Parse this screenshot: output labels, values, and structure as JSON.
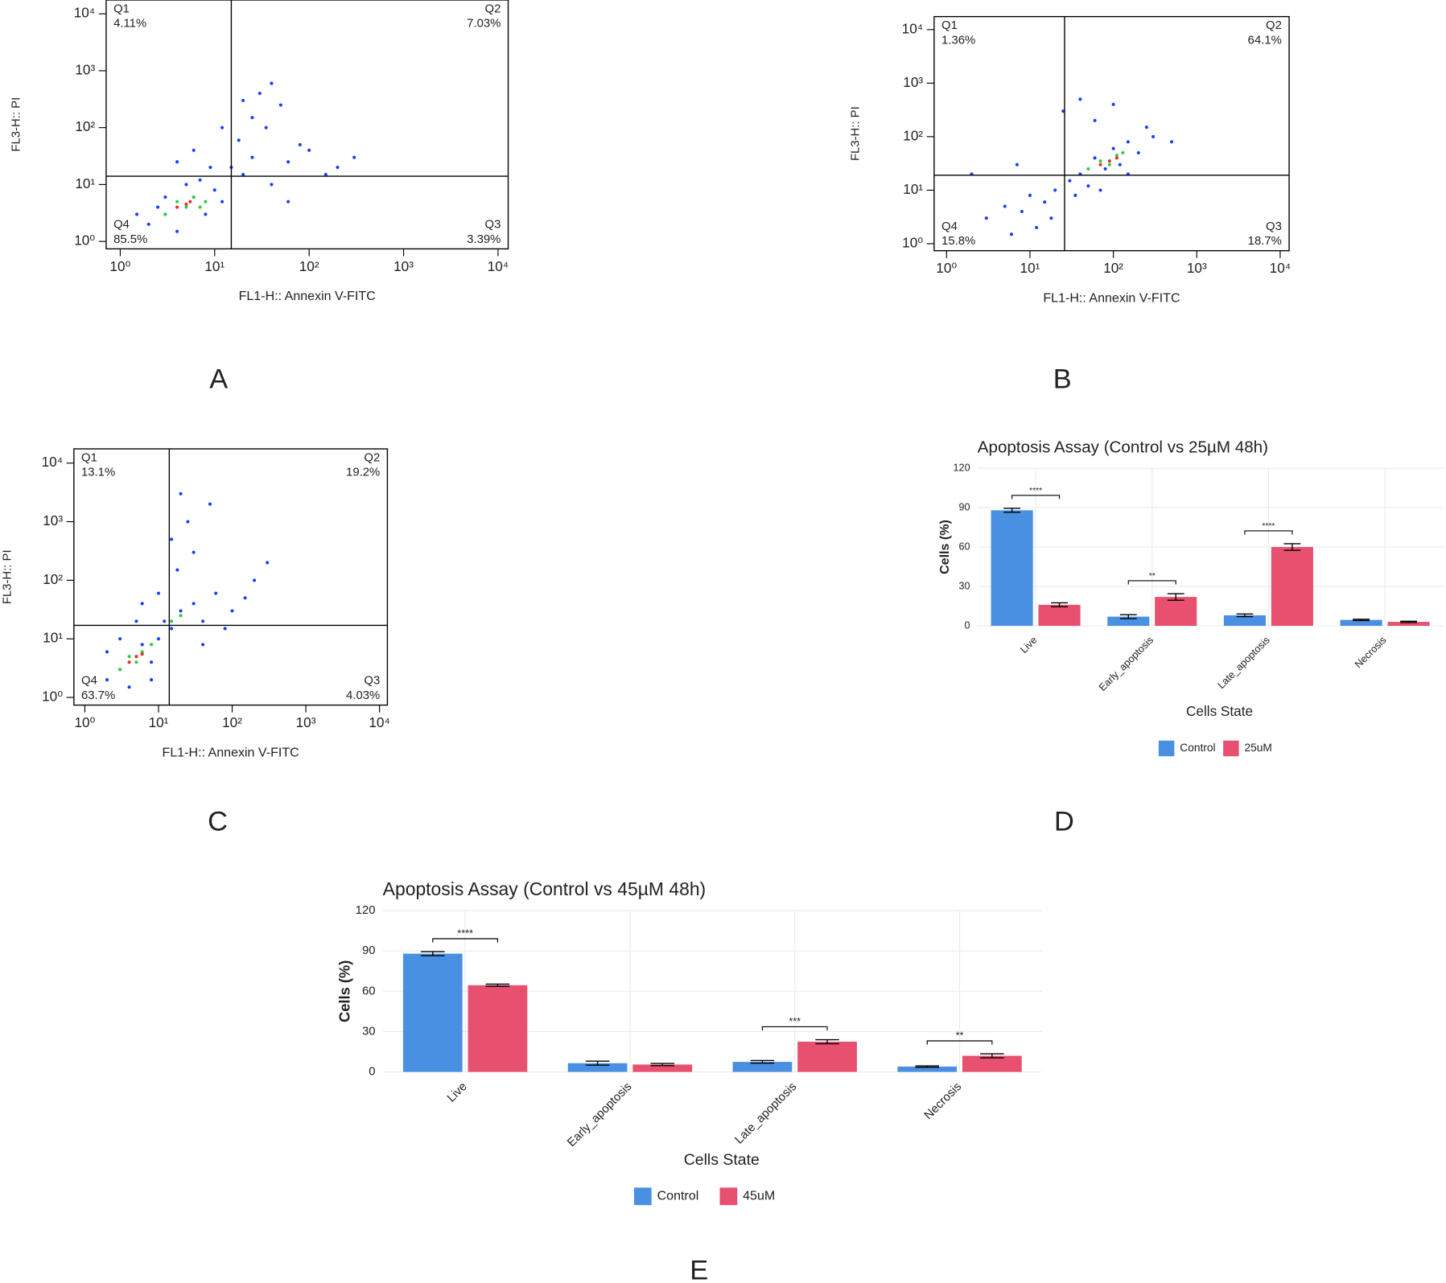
{
  "chart_data": [
    {
      "type": "flow_scatter",
      "panel_label": "A",
      "xlabel": "FL1-H:: Annexin V-FITC",
      "ylabel": "FL3-H:: PI",
      "xscale": "log",
      "yscale": "log",
      "xlim": [
        0.71,
        12800
      ],
      "ylim": [
        0.74,
        17500
      ],
      "xticks": [
        {
          "value": 1,
          "label": "10⁰"
        },
        {
          "value": 10,
          "label": "10¹"
        },
        {
          "value": 100,
          "label": "10²"
        },
        {
          "value": 1000,
          "label": "10³"
        },
        {
          "value": 10000,
          "label": "10⁴"
        }
      ],
      "yticks": [
        {
          "value": 1,
          "label": "10⁰"
        },
        {
          "value": 10,
          "label": "10¹"
        },
        {
          "value": 100,
          "label": "10²"
        },
        {
          "value": 1000,
          "label": "10³"
        },
        {
          "value": 10000,
          "label": "10⁴"
        }
      ],
      "gates": {
        "x": 15,
        "y": 14
      },
      "quadrants": {
        "names": [
          "Q1",
          "Q2",
          "Q3",
          "Q4"
        ],
        "values": [
          4.11,
          7.03,
          3.39,
          85.5
        ],
        "value_labels": [
          "4.11%",
          "7.03%",
          "3.39%",
          "85.5%"
        ]
      },
      "series": [
        {
          "color": "#1a3cff",
          "x": [
            2,
            3,
            4,
            6,
            8,
            10,
            3,
            5,
            7,
            12,
            15,
            20,
            2.5,
            9,
            25,
            40,
            60,
            100,
            150,
            30,
            20,
            40,
            50,
            25,
            35,
            80,
            200,
            12,
            6,
            18,
            1.5,
            4,
            300,
            60
          ],
          "y": [
            2,
            3,
            1.5,
            6,
            3,
            8,
            6,
            10,
            12,
            5,
            20,
            15,
            4,
            20,
            30,
            10,
            25,
            40,
            15,
            400,
            300,
            600,
            250,
            150,
            100,
            50,
            20,
            100,
            40,
            60,
            3,
            25,
            30,
            5
          ]
        },
        {
          "color": "#2ecc40",
          "x": [
            3,
            4,
            5,
            6,
            7,
            8
          ],
          "y": [
            3,
            5,
            4,
            6,
            4,
            5
          ]
        },
        {
          "color": "#e8301c",
          "x": [
            4,
            5,
            5.5
          ],
          "y": [
            4,
            4.5,
            5
          ]
        }
      ]
    },
    {
      "type": "flow_scatter",
      "panel_label": "B",
      "xlabel": "FL1-H:: Annexin V-FITC",
      "ylabel": "FL3-H:: PI",
      "xscale": "log",
      "yscale": "log",
      "xlim": [
        0.71,
        12800
      ],
      "ylim": [
        0.74,
        17500
      ],
      "xticks": [
        {
          "value": 1,
          "label": "10⁰"
        },
        {
          "value": 10,
          "label": "10¹"
        },
        {
          "value": 100,
          "label": "10²"
        },
        {
          "value": 1000,
          "label": "10³"
        },
        {
          "value": 10000,
          "label": "10⁴"
        }
      ],
      "yticks": [
        {
          "value": 1,
          "label": "10⁰"
        },
        {
          "value": 10,
          "label": "10¹"
        },
        {
          "value": 100,
          "label": "10²"
        },
        {
          "value": 1000,
          "label": "10³"
        },
        {
          "value": 10000,
          "label": "10⁴"
        }
      ],
      "gates": {
        "x": 26,
        "y": 19
      },
      "quadrants": {
        "names": [
          "Q1",
          "Q2",
          "Q3",
          "Q4"
        ],
        "values": [
          1.36,
          64.1,
          18.7,
          15.8
        ],
        "value_labels": [
          "1.36%",
          "64.1%",
          "18.7%",
          "15.8%"
        ]
      },
      "series": [
        {
          "color": "#1a3cff",
          "x": [
            3,
            5,
            8,
            10,
            15,
            20,
            30,
            40,
            50,
            60,
            80,
            100,
            120,
            150,
            200,
            300,
            25,
            40,
            60,
            100,
            12,
            6,
            2,
            7,
            18,
            250,
            500,
            35,
            70,
            150
          ],
          "y": [
            3,
            5,
            4,
            8,
            6,
            10,
            15,
            20,
            12,
            40,
            25,
            60,
            30,
            80,
            50,
            100,
            300,
            500,
            200,
            400,
            2,
            1.5,
            20,
            30,
            3,
            150,
            80,
            8,
            10,
            20
          ]
        },
        {
          "color": "#2ecc40",
          "x": [
            50,
            70,
            90,
            110,
            130
          ],
          "y": [
            25,
            35,
            30,
            45,
            50
          ]
        },
        {
          "color": "#e8301c",
          "x": [
            70,
            90,
            110
          ],
          "y": [
            30,
            35,
            40
          ]
        }
      ]
    },
    {
      "type": "flow_scatter",
      "panel_label": "C",
      "xlabel": "FL1-H:: Annexin V-FITC",
      "ylabel": "FL3-H:: PI",
      "xscale": "log",
      "yscale": "log",
      "xlim": [
        0.71,
        12800
      ],
      "ylim": [
        0.74,
        17500
      ],
      "xticks": [
        {
          "value": 1,
          "label": "10⁰"
        },
        {
          "value": 10,
          "label": "10¹"
        },
        {
          "value": 100,
          "label": "10²"
        },
        {
          "value": 1000,
          "label": "10³"
        },
        {
          "value": 10000,
          "label": "10⁴"
        }
      ],
      "yticks": [
        {
          "value": 1,
          "label": "10⁰"
        },
        {
          "value": 10,
          "label": "10¹"
        },
        {
          "value": 100,
          "label": "10²"
        },
        {
          "value": 1000,
          "label": "10³"
        },
        {
          "value": 10000,
          "label": "10⁴"
        }
      ],
      "gates": {
        "x": 14,
        "y": 17
      },
      "quadrants": {
        "names": [
          "Q1",
          "Q2",
          "Q3",
          "Q4"
        ],
        "values": [
          13.1,
          19.2,
          4.03,
          63.7
        ],
        "value_labels": [
          "13.1%",
          "19.2%",
          "4.03%",
          "63.7%"
        ]
      },
      "series": [
        {
          "color": "#1a3cff",
          "x": [
            2,
            3,
            4,
            6,
            8,
            10,
            12,
            15,
            20,
            30,
            40,
            60,
            100,
            200,
            300,
            15,
            25,
            50,
            20,
            30,
            3,
            5,
            8,
            2,
            40,
            80,
            18,
            150,
            10,
            6
          ],
          "y": [
            2,
            3,
            1.5,
            8,
            4,
            10,
            20,
            15,
            30,
            40,
            20,
            60,
            30,
            100,
            200,
            500,
            1000,
            2000,
            3000,
            300,
            10,
            20,
            2,
            6,
            8,
            15,
            150,
            50,
            60,
            40
          ]
        },
        {
          "color": "#2ecc40",
          "x": [
            3,
            4,
            5,
            6,
            8,
            15,
            20
          ],
          "y": [
            3,
            5,
            4,
            6,
            8,
            20,
            25
          ]
        },
        {
          "color": "#e8301c",
          "x": [
            4,
            5,
            6
          ],
          "y": [
            4,
            5,
            5.5
          ]
        }
      ]
    },
    {
      "type": "bar",
      "panel_label": "D",
      "title": "Apoptosis Assay (Control vs 25µM 48h)",
      "xlabel": "Cells State",
      "ylabel": "Cells (%)",
      "categories": [
        "Live",
        "Early_apoptosis",
        "Late_apoptosis",
        "Necrosis"
      ],
      "series": [
        {
          "name": "Control",
          "color": "#4a90e2",
          "values": [
            88,
            7,
            8,
            4.5
          ],
          "errors": [
            1.5,
            1.5,
            1,
            0.5
          ]
        },
        {
          "name": "25uM",
          "color": "#e8506f",
          "values": [
            16,
            22,
            60,
            3
          ],
          "errors": [
            1.5,
            2.5,
            2.5,
            0.5
          ]
        }
      ],
      "ylim": [
        0,
        120
      ],
      "yticks": [
        0,
        30,
        60,
        90,
        120
      ],
      "grid": true,
      "legend": "bottom",
      "annotations": [
        {
          "category": "Live",
          "text": "****"
        },
        {
          "category": "Early_apoptosis",
          "text": "**"
        },
        {
          "category": "Late_apoptosis",
          "text": "****"
        }
      ]
    },
    {
      "type": "bar",
      "panel_label": "E",
      "title": "Apoptosis Assay (Control vs 45µM 48h)",
      "xlabel": "Cells State",
      "ylabel": "Cells (%)",
      "categories": [
        "Live",
        "Early_apoptosis",
        "Late_apoptosis",
        "Necrosis"
      ],
      "series": [
        {
          "name": "Control",
          "color": "#4a90e2",
          "values": [
            88,
            6.5,
            7.5,
            4
          ],
          "errors": [
            1.5,
            1.5,
            1,
            0.5
          ]
        },
        {
          "name": "45uM",
          "color": "#e8506f",
          "values": [
            64.5,
            5.5,
            22.5,
            12
          ],
          "errors": [
            0.8,
            0.8,
            1.5,
            1.5
          ]
        }
      ],
      "ylim": [
        0,
        120
      ],
      "yticks": [
        0,
        30,
        60,
        90,
        120
      ],
      "grid": true,
      "legend": "bottom",
      "annotations": [
        {
          "category": "Live",
          "text": "****"
        },
        {
          "category": "Late_apoptosis",
          "text": "***"
        },
        {
          "category": "Necrosis",
          "text": "**"
        }
      ]
    }
  ]
}
